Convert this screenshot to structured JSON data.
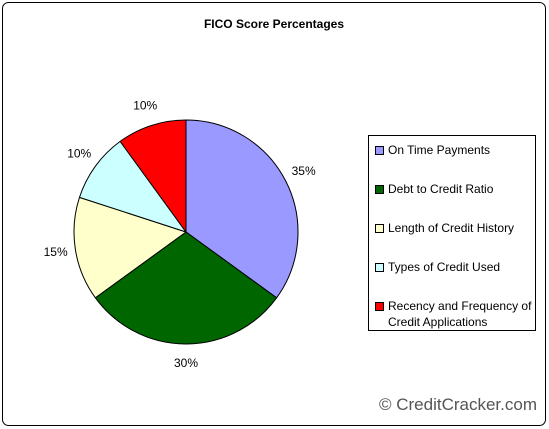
{
  "chart_data": {
    "type": "pie",
    "title": "FICO Score Percentages",
    "categories": [
      "On Time Payments",
      "Debt to Credit Ratio",
      "Length of Credit History",
      "Types of Credit Used",
      "Recency and Frequency of Credit Applications"
    ],
    "values": [
      35,
      30,
      15,
      10,
      10
    ],
    "value_labels": [
      "35%",
      "30%",
      "15%",
      "10%",
      "10%"
    ],
    "colors": [
      "#9999ff",
      "#006600",
      "#ffffcc",
      "#ccffff",
      "#ff0000"
    ],
    "legend": "right",
    "watermark": "© CreditCracker.com"
  }
}
